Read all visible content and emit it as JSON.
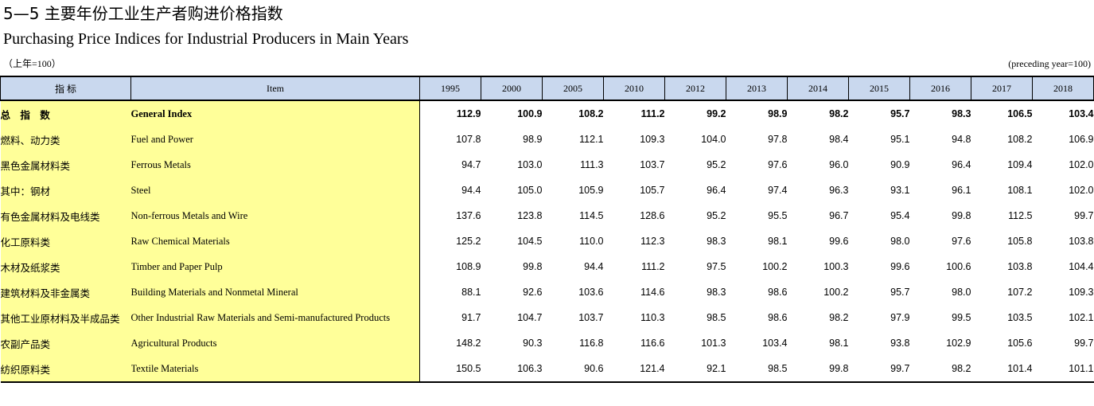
{
  "title_cn": "5—5  主要年份工业生产者购进价格指数",
  "title_en": "Purchasing Price Indices for Industrial Producers in Main Years",
  "note_left": "（上年=100）",
  "note_right": "(preceding year=100)",
  "headers": {
    "indicator": "指    标",
    "item": "Item",
    "years": [
      "1995",
      "2000",
      "2005",
      "2010",
      "2012",
      "2013",
      "2014",
      "2015",
      "2016",
      "2017",
      "2018"
    ]
  },
  "rows": [
    {
      "cn": "总 指 数",
      "en": "General Index",
      "bold": true,
      "values": [
        "112.9",
        "100.9",
        "108.2",
        "111.2",
        "99.2",
        "98.9",
        "98.2",
        "95.7",
        "98.3",
        "106.5",
        "103.4"
      ]
    },
    {
      "cn": "燃料、动力类",
      "en": "Fuel and Power",
      "values": [
        "107.8",
        "98.9",
        "112.1",
        "109.3",
        "104.0",
        "97.8",
        "98.4",
        "95.1",
        "94.8",
        "108.2",
        "106.9"
      ]
    },
    {
      "cn": "黑色金属材料类",
      "en": "Ferrous Metals",
      "values": [
        "94.7",
        "103.0",
        "111.3",
        "103.7",
        "95.2",
        "97.6",
        "96.0",
        "90.9",
        "96.4",
        "109.4",
        "102.0"
      ]
    },
    {
      "cn": "其中：钢材",
      "en": "Steel",
      "values": [
        "94.4",
        "105.0",
        "105.9",
        "105.7",
        "96.4",
        "97.4",
        "96.3",
        "93.1",
        "96.1",
        "108.1",
        "102.0"
      ]
    },
    {
      "cn": "有色金属材料及电线类",
      "en": "Non-ferrous Metals and Wire",
      "values": [
        "137.6",
        "123.8",
        "114.5",
        "128.6",
        "95.2",
        "95.5",
        "96.7",
        "95.4",
        "99.8",
        "112.5",
        "99.7"
      ]
    },
    {
      "cn": "化工原料类",
      "en": "Raw Chemical Materials",
      "values": [
        "125.2",
        "104.5",
        "110.0",
        "112.3",
        "98.3",
        "98.1",
        "99.6",
        "98.0",
        "97.6",
        "105.8",
        "103.8"
      ]
    },
    {
      "cn": "木材及纸浆类",
      "en": "Timber and Paper Pulp",
      "values": [
        "108.9",
        "99.8",
        "94.4",
        "111.2",
        "97.5",
        "100.2",
        "100.3",
        "99.6",
        "100.6",
        "103.8",
        "104.4"
      ]
    },
    {
      "cn": "建筑材料及非金属类",
      "en": "Building Materials and Nonmetal Mineral",
      "values": [
        "88.1",
        "92.6",
        "103.6",
        "114.6",
        "98.3",
        "98.6",
        "100.2",
        "95.7",
        "98.0",
        "107.2",
        "109.3"
      ]
    },
    {
      "cn": "其他工业原材料及半成品类",
      "en": "Other Industrial Raw Materials and Semi-manufactured Products",
      "values": [
        "91.7",
        "104.7",
        "103.7",
        "110.3",
        "98.5",
        "98.6",
        "98.2",
        "97.9",
        "99.5",
        "103.5",
        "102.1"
      ]
    },
    {
      "cn": "农副产品类",
      "en": "Agricultural Products",
      "values": [
        "148.2",
        "90.3",
        "116.8",
        "116.6",
        "101.3",
        "103.4",
        "98.1",
        "93.8",
        "102.9",
        "105.6",
        "99.7"
      ]
    },
    {
      "cn": "纺织原料类",
      "en": "Textile Materials",
      "values": [
        "150.5",
        "106.3",
        "90.6",
        "121.4",
        "92.1",
        "98.5",
        "99.8",
        "99.7",
        "98.2",
        "101.4",
        "101.1"
      ]
    }
  ]
}
